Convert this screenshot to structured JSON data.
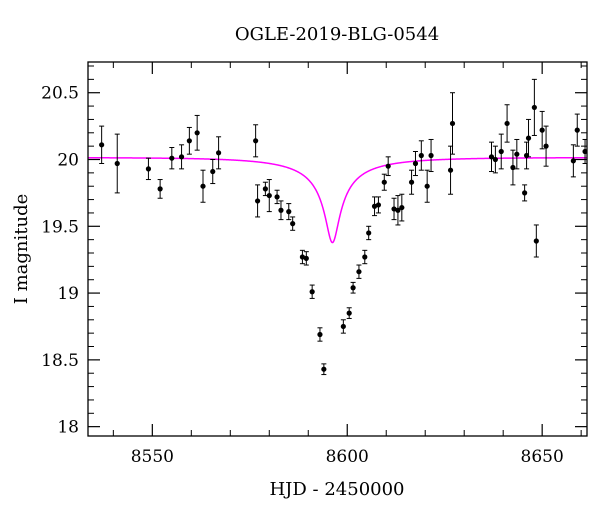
{
  "chart_data": {
    "type": "scatter",
    "title": "OGLE-2019-BLG-0544",
    "xlabel": "HJD - 2450000",
    "ylabel": "I magnitude",
    "xlim": [
      8533.5,
      8661.5
    ],
    "ylim": [
      20.73,
      17.93
    ],
    "y_inverted": true,
    "x_ticks": [
      8550,
      8600,
      8650
    ],
    "x_tick_labels": [
      "8550",
      "8600",
      "8650"
    ],
    "y_ticks": [
      18,
      18.5,
      19,
      19.5,
      20,
      20.5
    ],
    "y_tick_labels": [
      "18",
      "18.5",
      "19",
      "19.5",
      "20",
      "20.5"
    ],
    "x_minor_step": 10,
    "y_minor_step": 0.1,
    "grid": false,
    "colors": {
      "data": "#000000",
      "model": "#ff00ff",
      "axes": "#000000"
    },
    "series": [
      {
        "kind": "points_with_errorbars",
        "points": [
          [
            8537.0,
            20.11,
            0.14
          ],
          [
            8541.0,
            19.97,
            0.22
          ],
          [
            8549.0,
            19.93,
            0.08
          ],
          [
            8552.0,
            19.78,
            0.07
          ],
          [
            8555.0,
            20.01,
            0.08
          ],
          [
            8557.5,
            20.02,
            0.09
          ],
          [
            8559.5,
            20.14,
            0.1
          ],
          [
            8561.5,
            20.2,
            0.13
          ],
          [
            8563.0,
            19.8,
            0.12
          ],
          [
            8565.5,
            19.91,
            0.09
          ],
          [
            8567.0,
            20.05,
            0.12
          ],
          [
            8576.5,
            20.14,
            0.12
          ],
          [
            8577.0,
            19.69,
            0.12
          ],
          [
            8579.0,
            19.78,
            0.05
          ],
          [
            8580.0,
            19.73,
            0.12
          ],
          [
            8582.0,
            19.72,
            0.05
          ],
          [
            8583.0,
            19.62,
            0.07
          ],
          [
            8585.0,
            19.61,
            0.06
          ],
          [
            8586.0,
            19.52,
            0.05
          ],
          [
            8588.5,
            19.27,
            0.05
          ],
          [
            8589.5,
            19.26,
            0.05
          ],
          [
            8591.0,
            19.01,
            0.05
          ],
          [
            8593.0,
            18.69,
            0.05
          ],
          [
            8594.0,
            18.43,
            0.04
          ],
          [
            8599.0,
            18.75,
            0.05
          ],
          [
            8600.5,
            18.85,
            0.04
          ],
          [
            8601.5,
            19.04,
            0.04
          ],
          [
            8603.0,
            19.16,
            0.05
          ],
          [
            8604.5,
            19.27,
            0.05
          ],
          [
            8605.5,
            19.45,
            0.05
          ],
          [
            8607.0,
            19.65,
            0.07
          ],
          [
            8608.0,
            19.66,
            0.06
          ],
          [
            8609.5,
            19.83,
            0.06
          ],
          [
            8610.5,
            19.95,
            0.07
          ],
          [
            8612.0,
            19.63,
            0.08
          ],
          [
            8613.0,
            19.62,
            0.11
          ],
          [
            8614.0,
            19.64,
            0.1
          ],
          [
            8616.5,
            19.83,
            0.09
          ],
          [
            8617.5,
            19.97,
            0.09
          ],
          [
            8619.0,
            20.03,
            0.11
          ],
          [
            8620.5,
            19.8,
            0.12
          ],
          [
            8621.5,
            20.03,
            0.12
          ],
          [
            8626.5,
            19.92,
            0.18
          ],
          [
            8627.0,
            20.27,
            0.23
          ],
          [
            8637.0,
            20.02,
            0.11
          ],
          [
            8638.0,
            20.0,
            0.1
          ],
          [
            8639.5,
            20.06,
            0.13
          ],
          [
            8641.0,
            20.27,
            0.14
          ],
          [
            8642.5,
            19.94,
            0.13
          ],
          [
            8643.5,
            20.04,
            0.11
          ],
          [
            8645.5,
            19.75,
            0.06
          ],
          [
            8646.0,
            20.03,
            0.1
          ],
          [
            8646.5,
            20.16,
            0.14
          ],
          [
            8648.0,
            20.39,
            0.21
          ],
          [
            8648.5,
            19.39,
            0.12
          ],
          [
            8650.0,
            20.22,
            0.14
          ],
          [
            8651.0,
            20.1,
            0.15
          ],
          [
            8658.0,
            19.99,
            0.12
          ],
          [
            8659.0,
            20.22,
            0.12
          ],
          [
            8661.0,
            20.06,
            0.09
          ]
        ]
      },
      {
        "kind": "model_curve",
        "model": {
          "type": "point-lens",
          "t0": 8596.2,
          "u0": 0.0655,
          "tE": 24.6,
          "f_s": 0.05585,
          "base_mag": 20.015
        }
      }
    ]
  }
}
